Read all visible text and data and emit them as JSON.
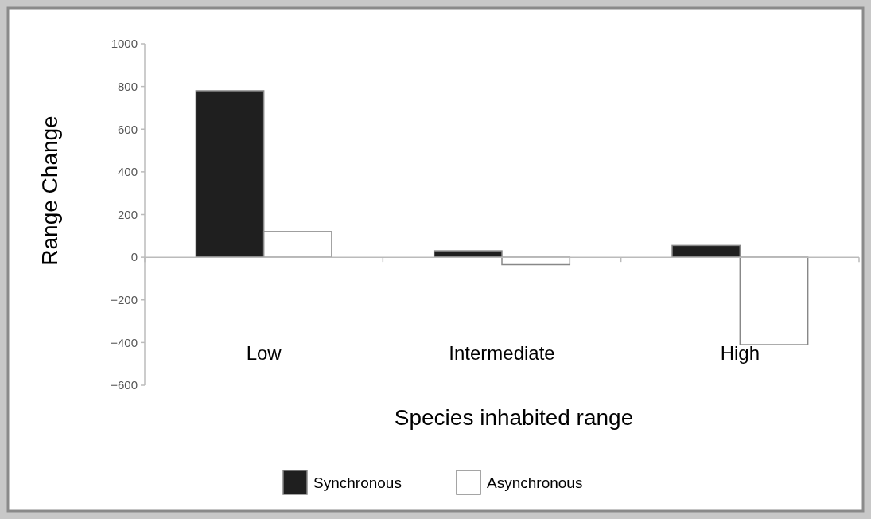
{
  "chart_data": {
    "type": "bar",
    "xlabel": "Species inhabited range",
    "ylabel": "Range Change",
    "categories": [
      "Low",
      "Intermediate",
      "High"
    ],
    "series": [
      {
        "name": "Synchronous",
        "color": "#1f1f1f",
        "values": [
          780,
          30,
          55
        ]
      },
      {
        "name": "Asynchronous",
        "color": "#ffffff",
        "values": [
          120,
          -35,
          -410
        ]
      }
    ],
    "ylim": [
      -600,
      1000
    ],
    "yticks": [
      -600,
      -400,
      -200,
      0,
      200,
      400,
      600,
      800,
      1000
    ],
    "legend": "bottom"
  }
}
